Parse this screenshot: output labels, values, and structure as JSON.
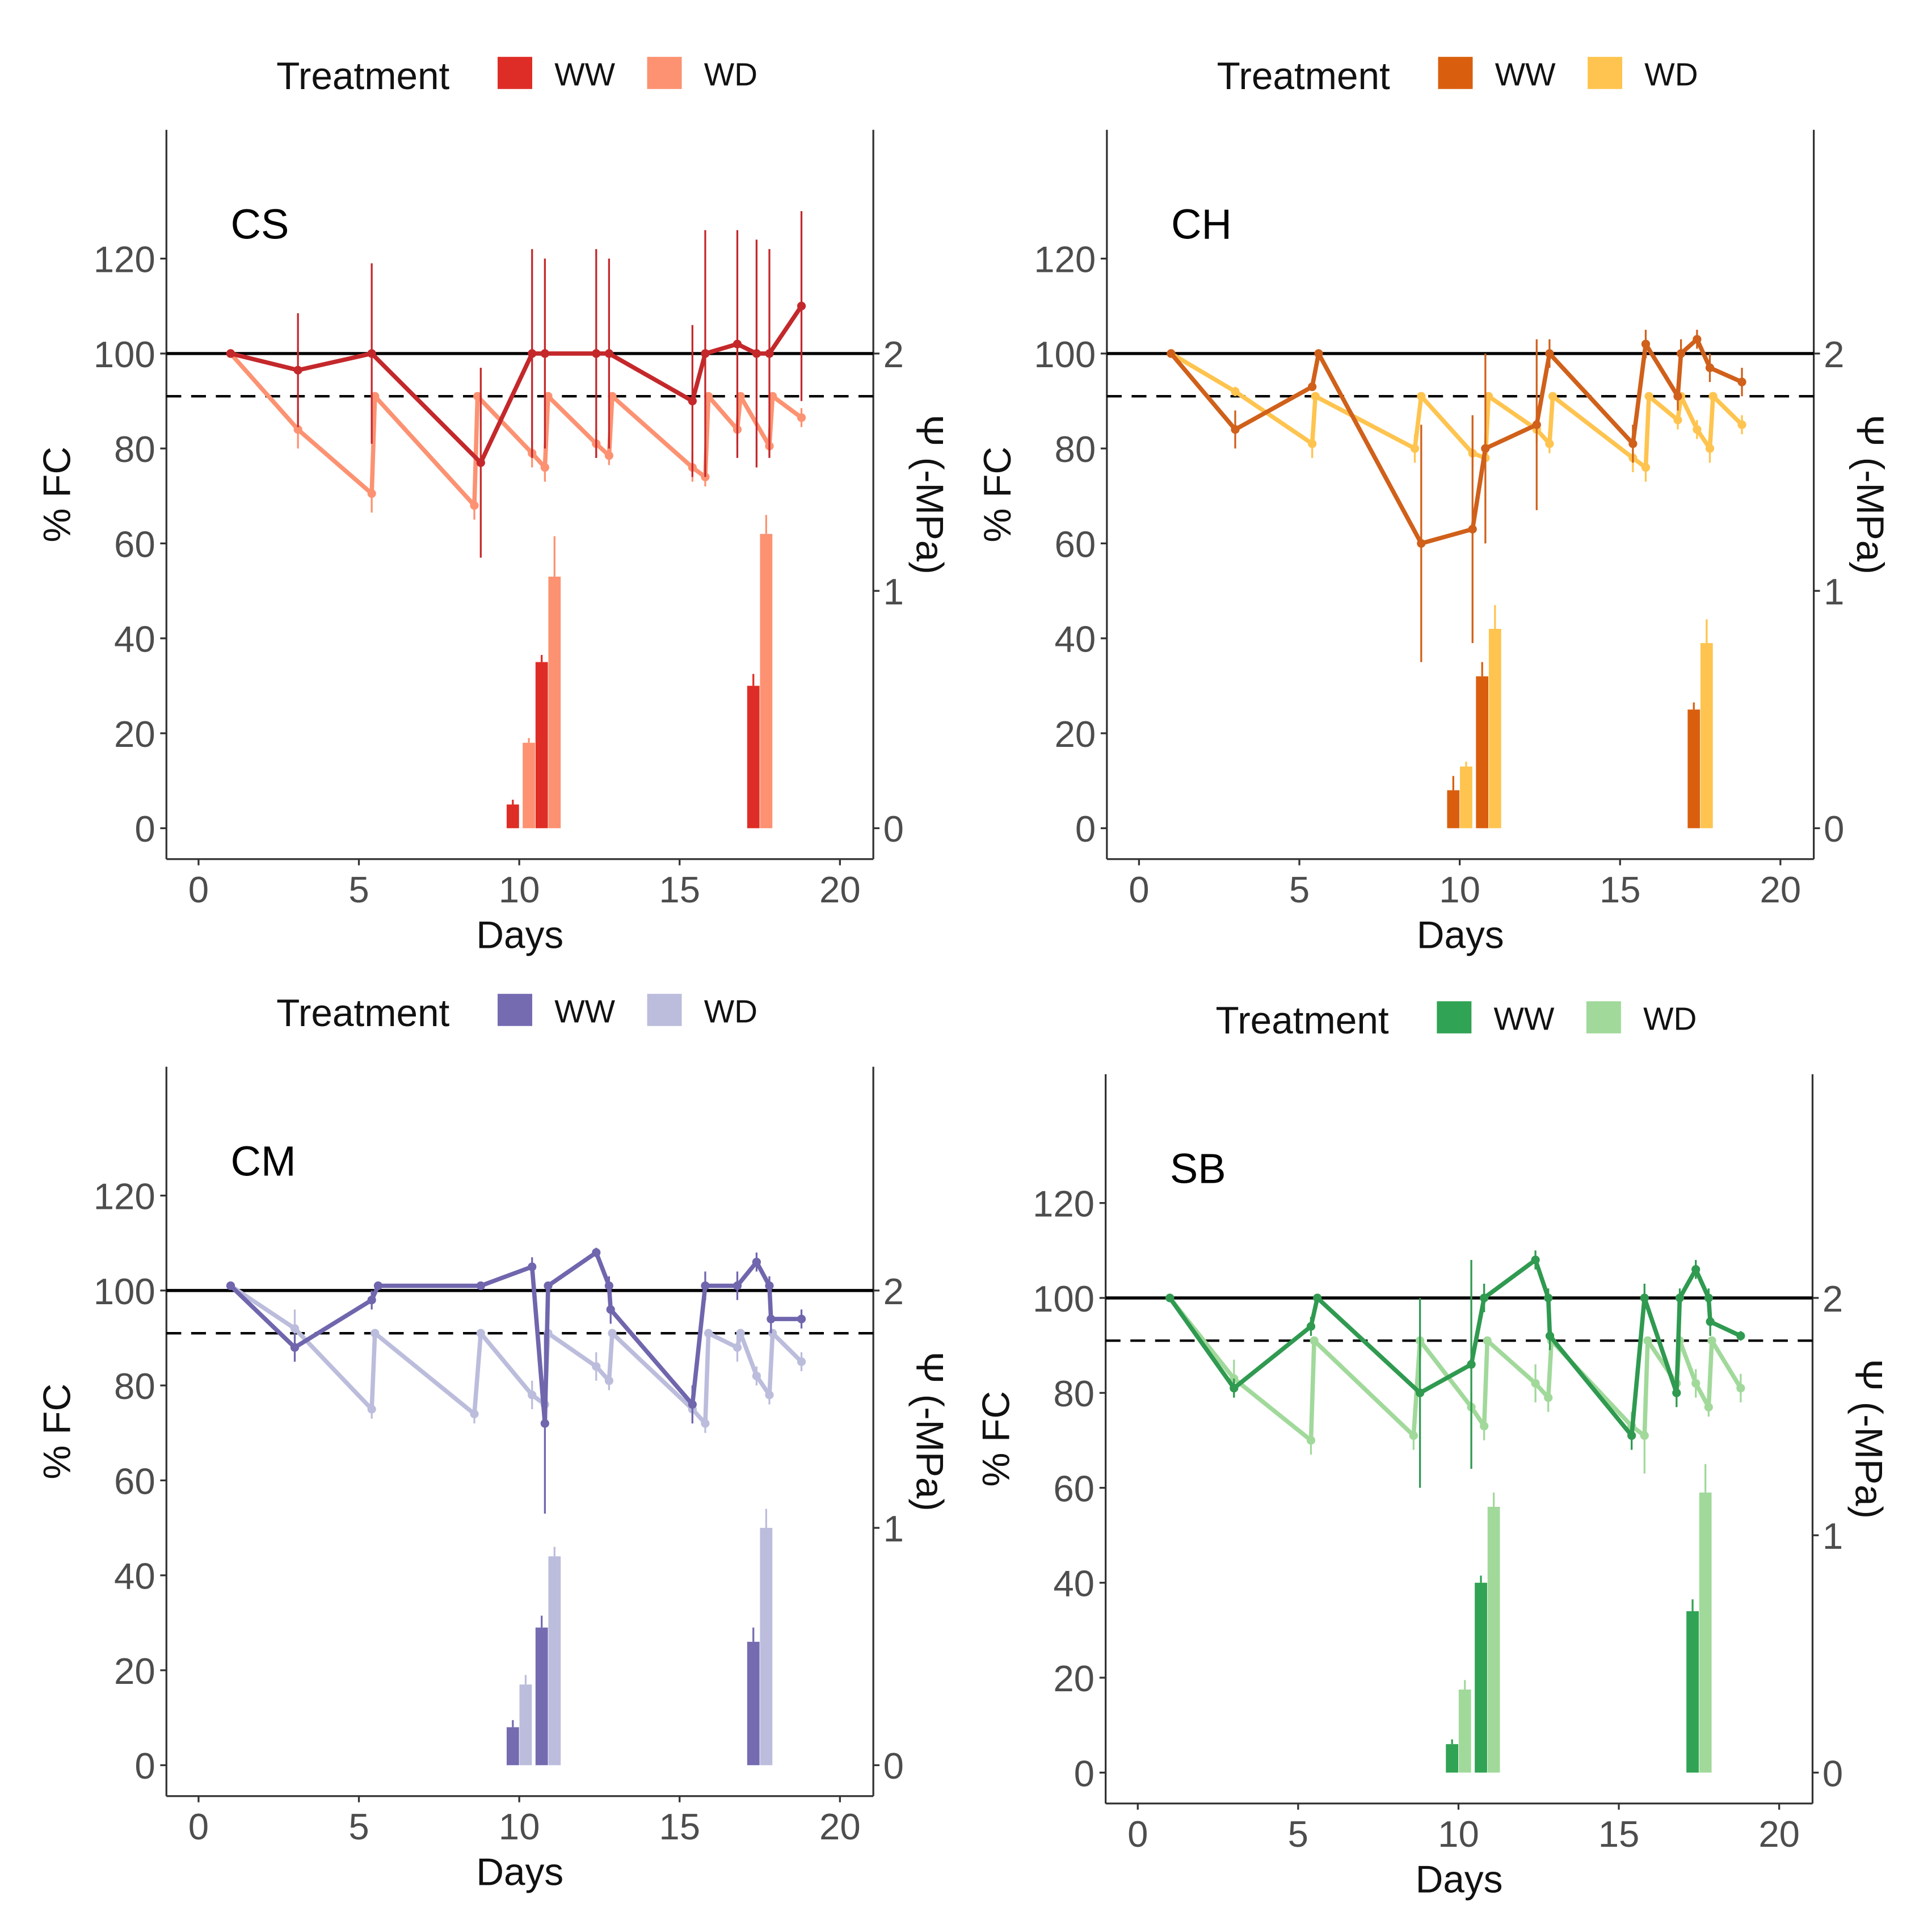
{
  "chart_data": [
    {
      "type": "line+bar",
      "panel_label": "CS",
      "legend": {
        "title": "Treatment",
        "entries": [
          "WW",
          "WD"
        ],
        "placement": "top"
      },
      "xlabel": "Days",
      "ylabel": "% FC",
      "ylabel_right": "Ψ (-MPa)",
      "xlim": [
        -1,
        21
      ],
      "ylim": [
        -6,
        148
      ],
      "y2lim": [
        -0.12,
        2.96
      ],
      "xticks": [
        "0",
        "5",
        "10",
        "15",
        "20"
      ],
      "yticks": [
        "0",
        "20",
        "40",
        "60",
        "80",
        "100",
        "120"
      ],
      "y2ticks": [
        "0",
        "1",
        "2"
      ],
      "reference_lines": {
        "solid": 100,
        "dashed": 91
      },
      "colors": {
        "WW": "#de2d26",
        "WW_line": "#c4282b",
        "WD": "#fc9272"
      },
      "series": [
        {
          "name": "WW",
          "x": [
            1,
            3.1,
            5.4,
            8.8,
            10.4,
            10.8,
            12.4,
            12.8,
            15.4,
            15.8,
            16.8,
            17.4,
            17.8,
            18.8
          ],
          "y": [
            100,
            96.5,
            100,
            77,
            100,
            100,
            100,
            100,
            90,
            100,
            102,
            100,
            100,
            110
          ],
          "err": [
            0,
            12,
            19,
            20,
            22,
            20,
            22,
            20,
            16,
            26,
            24,
            24,
            22,
            20
          ]
        },
        {
          "name": "WD",
          "x": [
            1,
            3.1,
            5.4,
            5.5,
            8.6,
            8.7,
            10.4,
            10.8,
            10.9,
            12.4,
            12.8,
            12.9,
            15.4,
            15.8,
            15.9,
            16.8,
            16.9,
            17.8,
            17.9,
            18.8
          ],
          "y": [
            100,
            84,
            70.5,
            91,
            68,
            91,
            79,
            76,
            91,
            81,
            78.5,
            91,
            76,
            74,
            91,
            84,
            91,
            80.5,
            91,
            86.5
          ],
          "err": [
            0,
            4,
            4,
            0,
            3,
            0,
            3,
            3,
            0,
            3,
            2,
            0,
            3,
            2,
            0,
            3,
            0,
            2,
            0,
            2
          ]
        }
      ],
      "bars": {
        "WW": {
          "x": [
            9.8,
            17.3
          ],
          "y": [
            0.1,
            0.6
          ],
          "err": [
            0.02,
            0.05
          ]
        },
        "WD": {
          "x": [
            10.3,
            17.7
          ],
          "y": [
            0.36,
            1.24
          ],
          "err": [
            0.02,
            0.08
          ]
        },
        "WW2": {
          "x": [
            10.7
          ],
          "y": [
            0.7
          ],
          "err": [
            0.03
          ]
        },
        "WD2": {
          "x": [
            11.1
          ],
          "y": [
            1.06
          ],
          "err": [
            0.17
          ]
        }
      }
    },
    {
      "type": "line+bar",
      "panel_label": "CH",
      "legend": {
        "title": "Treatment",
        "entries": [
          "WW",
          "WD"
        ],
        "placement": "top"
      },
      "xlabel": "Days",
      "ylabel": "% FC",
      "ylabel_right": "Ψ (-MPa)",
      "xlim": [
        -1,
        21
      ],
      "ylim": [
        -6,
        148
      ],
      "y2lim": [
        -0.12,
        2.96
      ],
      "xticks": [
        "0",
        "5",
        "10",
        "15",
        "20"
      ],
      "yticks": [
        "0",
        "20",
        "40",
        "60",
        "80",
        "100",
        "120"
      ],
      "y2ticks": [
        "0",
        "1",
        "2"
      ],
      "reference_lines": {
        "solid": 100,
        "dashed": 91
      },
      "colors": {
        "WW": "#d95f0e",
        "WW_line": "#d0601a",
        "WD": "#fec44f"
      },
      "series": [
        {
          "name": "WW",
          "x": [
            1,
            3,
            5.4,
            5.6,
            8.8,
            10.4,
            10.8,
            12.4,
            12.8,
            15.4,
            15.8,
            16.8,
            16.9,
            17.4,
            17.8,
            18.8
          ],
          "y": [
            100,
            84,
            93,
            100,
            60,
            63,
            80,
            85,
            100,
            81,
            102,
            91,
            100,
            103,
            97,
            94
          ],
          "err": [
            0,
            4,
            0,
            0,
            25,
            24,
            20,
            18,
            3,
            4,
            3,
            3,
            3,
            2,
            3,
            3
          ]
        },
        {
          "name": "WD",
          "x": [
            1,
            3,
            5.4,
            5.5,
            8.6,
            8.8,
            10.4,
            10.8,
            10.9,
            12.4,
            12.8,
            12.9,
            15.4,
            15.8,
            15.9,
            16.8,
            16.9,
            17.4,
            17.8,
            17.9,
            18.8
          ],
          "y": [
            100,
            92,
            81,
            91,
            80,
            91,
            79,
            78,
            91,
            84,
            81,
            91,
            78,
            76,
            91,
            86,
            91,
            84,
            80,
            91,
            85
          ],
          "err": [
            0,
            1,
            3,
            0,
            3,
            0,
            3,
            2,
            0,
            3,
            2,
            0,
            3,
            3,
            0,
            2,
            0,
            2,
            3,
            0,
            2
          ]
        }
      ],
      "bars": {
        "WW": {
          "x": [
            9.8,
            17.3
          ],
          "y": [
            0.16,
            0.5
          ],
          "err": [
            0.06,
            0.03
          ]
        },
        "WD": {
          "x": [
            10.2,
            17.7
          ],
          "y": [
            0.26,
            0.78
          ],
          "err": [
            0.02,
            0.1
          ]
        },
        "WW2": {
          "x": [
            10.7
          ],
          "y": [
            0.64
          ],
          "err": [
            0.06
          ]
        },
        "WD2": {
          "x": [
            11.1
          ],
          "y": [
            0.84
          ],
          "err": [
            0.1
          ]
        }
      }
    },
    {
      "type": "line+bar",
      "panel_label": "CM",
      "legend": {
        "title": "Treatment",
        "entries": [
          "WW",
          "WD"
        ],
        "placement": "top"
      },
      "xlabel": "Days",
      "ylabel": "% FC",
      "ylabel_right": "Ψ (-MPa)",
      "xlim": [
        -1,
        21
      ],
      "ylim": [
        -6,
        148
      ],
      "y2lim": [
        -0.12,
        2.96
      ],
      "xticks": [
        "0",
        "5",
        "10",
        "15",
        "20"
      ],
      "yticks": [
        "0",
        "20",
        "40",
        "60",
        "80",
        "100",
        "120"
      ],
      "y2ticks": [
        "0",
        "1",
        "2"
      ],
      "reference_lines": {
        "solid": 100,
        "dashed": 91
      },
      "colors": {
        "WW": "#756bb1",
        "WW_line": "#6f66ad",
        "WD": "#bcbddc"
      },
      "series": [
        {
          "name": "WW",
          "x": [
            1,
            3,
            5.4,
            5.6,
            8.8,
            10.4,
            10.8,
            10.9,
            12.4,
            12.8,
            12.85,
            15.4,
            15.8,
            16.8,
            17.4,
            17.8,
            17.85,
            18.8
          ],
          "y": [
            101,
            88,
            98,
            101,
            101,
            105,
            72,
            101,
            108,
            101,
            96,
            76,
            101,
            101,
            106,
            101,
            94,
            94
          ],
          "err": [
            0,
            3,
            2,
            0,
            0,
            2,
            19,
            0,
            1,
            2,
            3,
            4,
            3,
            3,
            2,
            2,
            3,
            2
          ]
        },
        {
          "name": "WD",
          "x": [
            1,
            3,
            5.4,
            5.5,
            8.6,
            8.8,
            10.4,
            10.8,
            10.9,
            12.4,
            12.8,
            12.9,
            15.4,
            15.8,
            15.9,
            16.8,
            16.9,
            17.4,
            17.8,
            17.9,
            18.8
          ],
          "y": [
            101,
            92,
            75,
            91,
            74,
            91,
            78,
            76,
            91,
            84,
            81,
            91,
            75,
            72,
            91,
            88,
            91,
            82,
            78,
            91,
            85
          ],
          "err": [
            0,
            4,
            2,
            0,
            2,
            0,
            3,
            2,
            0,
            3,
            2,
            0,
            3,
            2,
            0,
            3,
            0,
            2,
            2,
            0,
            2
          ]
        }
      ],
      "bars": {
        "WW": {
          "x": [
            9.8,
            17.3
          ],
          "y": [
            0.16,
            0.52
          ],
          "err": [
            0.03,
            0.06
          ]
        },
        "WD": {
          "x": [
            10.2,
            17.7
          ],
          "y": [
            0.34,
            1.0
          ],
          "err": [
            0.04,
            0.08
          ]
        },
        "WW2": {
          "x": [
            10.7
          ],
          "y": [
            0.58
          ],
          "err": [
            0.05
          ]
        },
        "WD2": {
          "x": [
            11.1
          ],
          "y": [
            0.88
          ],
          "err": [
            0.04
          ]
        }
      }
    },
    {
      "type": "line+bar",
      "panel_label": "SB",
      "legend": {
        "title": "Treatment",
        "entries": [
          "WW",
          "WD"
        ],
        "placement": "top"
      },
      "xlabel": "Days",
      "ylabel": "% FC",
      "ylabel_right": "Ψ (-MPa)",
      "xlim": [
        -1,
        21
      ],
      "ylim": [
        -6,
        148
      ],
      "y2lim": [
        -0.12,
        2.96
      ],
      "xticks": [
        "0",
        "5",
        "10",
        "15",
        "20"
      ],
      "yticks": [
        "0",
        "20",
        "40",
        "60",
        "80",
        "100",
        "120"
      ],
      "y2ticks": [
        "0",
        "1",
        "2"
      ],
      "reference_lines": {
        "solid": 100,
        "dashed": 91
      },
      "colors": {
        "WW": "#31a354",
        "WW_line": "#2f9a50",
        "WD": "#a1d99b"
      },
      "series": [
        {
          "name": "WW",
          "x": [
            1,
            3,
            5.4,
            5.6,
            8.8,
            10.4,
            10.8,
            12.4,
            12.8,
            12.85,
            15.4,
            15.8,
            16.8,
            16.9,
            17.4,
            17.8,
            17.85,
            18.8
          ],
          "y": [
            100,
            81,
            94,
            100,
            80,
            86,
            100,
            108,
            100,
            92,
            71,
            100,
            80,
            100,
            106,
            100,
            95,
            92
          ],
          "err": [
            0,
            2,
            2,
            0,
            20,
            22,
            3,
            2,
            2,
            3,
            3,
            3,
            3,
            2,
            2,
            2,
            3,
            1
          ]
        },
        {
          "name": "WD",
          "x": [
            1,
            3,
            5.4,
            5.5,
            8.6,
            8.8,
            10.4,
            10.8,
            10.9,
            12.4,
            12.8,
            12.9,
            15.4,
            15.8,
            15.9,
            16.8,
            16.9,
            17.4,
            17.8,
            17.9,
            18.8
          ],
          "y": [
            100,
            83,
            70,
            91,
            71,
            91,
            77,
            73,
            91,
            82,
            79,
            91,
            73,
            71,
            91,
            82,
            91,
            82,
            77,
            91,
            81
          ],
          "err": [
            0,
            4,
            3,
            0,
            3,
            0,
            3,
            3,
            0,
            4,
            3,
            0,
            3,
            8,
            0,
            3,
            0,
            3,
            2,
            0,
            3
          ]
        }
      ],
      "bars": {
        "WW": {
          "x": [
            9.8,
            17.3
          ],
          "y": [
            0.12,
            0.68
          ],
          "err": [
            0.02,
            0.05
          ]
        },
        "WD": {
          "x": [
            10.2,
            17.7
          ],
          "y": [
            0.35,
            1.18
          ],
          "err": [
            0.04,
            0.12
          ]
        },
        "WW2": {
          "x": [
            10.7
          ],
          "y": [
            0.8
          ],
          "err": [
            0.03
          ]
        },
        "WD2": {
          "x": [
            11.1
          ],
          "y": [
            1.12
          ],
          "err": [
            0.06
          ]
        }
      }
    }
  ]
}
